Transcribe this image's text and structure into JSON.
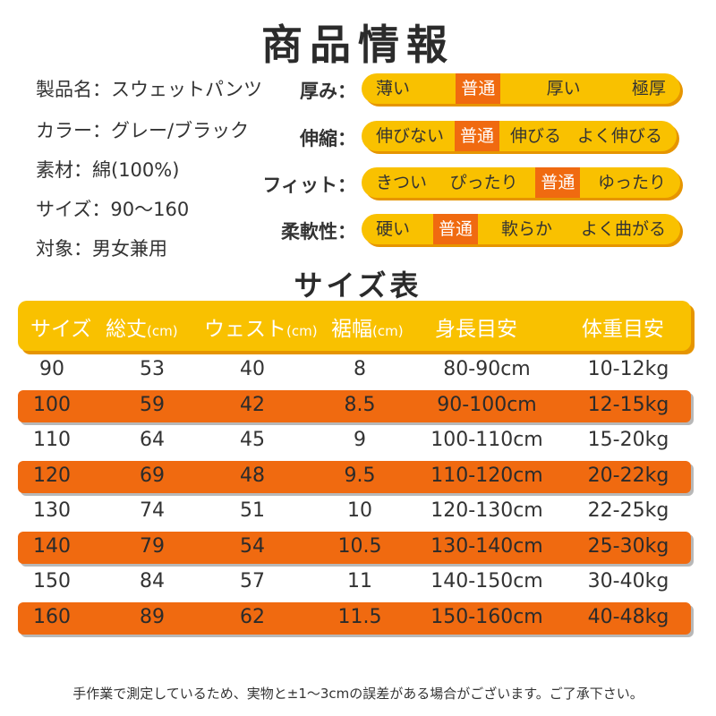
{
  "title": "商品情報",
  "specs": [
    {
      "label": "製品名",
      "value": "スウェットパンツ"
    },
    {
      "label": "カラー",
      "value": "グレー/ブラック"
    },
    {
      "label": "素材",
      "value": "綿(100%)"
    },
    {
      "label": "サイズ",
      "value": "90〜160"
    },
    {
      "label": "対象",
      "value": "男女兼用"
    }
  ],
  "scales": [
    {
      "label": "厚み：",
      "options": [
        "薄い",
        "普通",
        "厚い",
        "極厚"
      ],
      "selected": 1
    },
    {
      "label": "伸縮：",
      "options": [
        "伸びない",
        "普通",
        "伸びる",
        "よく伸びる"
      ],
      "selected": 1
    },
    {
      "label": "フィット：",
      "options": [
        "きつい",
        "ぴったり",
        "普通",
        "ゆったり"
      ],
      "selected": 2
    },
    {
      "label": "柔軟性：",
      "options": [
        "硬い",
        "普通",
        "軟らか",
        "よく曲がる"
      ],
      "selected": 1
    }
  ],
  "size_table": {
    "title": "サイズ表",
    "headers": [
      {
        "text": "サイズ",
        "unit": ""
      },
      {
        "text": "総丈",
        "unit": "(cm)"
      },
      {
        "text": "ウェスト",
        "unit": "(cm)"
      },
      {
        "text": "裾幅",
        "unit": "(cm)"
      },
      {
        "text": "身長目安",
        "unit": ""
      },
      {
        "text": "体重目安",
        "unit": ""
      }
    ],
    "rows": [
      [
        "90",
        "53",
        "40",
        "8",
        "80-90cm",
        "10-12kg"
      ],
      [
        "100",
        "59",
        "42",
        "8.5",
        "90-100cm",
        "12-15kg"
      ],
      [
        "110",
        "64",
        "45",
        "9",
        "100-110cm",
        "15-20kg"
      ],
      [
        "120",
        "69",
        "48",
        "9.5",
        "110-120cm",
        "20-22kg"
      ],
      [
        "130",
        "74",
        "51",
        "10",
        "120-130cm",
        "22-25kg"
      ],
      [
        "140",
        "79",
        "54",
        "10.5",
        "130-140cm",
        "25-30kg"
      ],
      [
        "150",
        "84",
        "57",
        "11",
        "140-150cm",
        "30-40kg"
      ],
      [
        "160",
        "89",
        "62",
        "11.5",
        "150-160cm",
        "40-48kg"
      ]
    ],
    "highlight_rows": [
      1,
      3,
      5,
      7
    ]
  },
  "note": "手作業で測定しているため、実物と±1〜3cmの誤差がある場合がございます。ご了承下さい。",
  "colors": {
    "yellow": "#f9c100",
    "orange": "#f06a10",
    "shadow": "#e69500"
  }
}
